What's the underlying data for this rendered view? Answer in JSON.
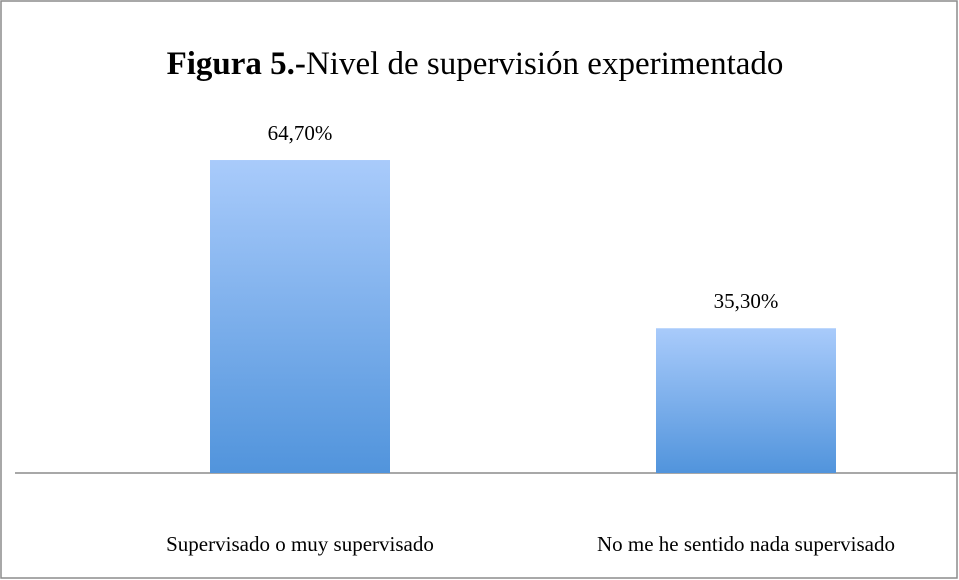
{
  "chart_data": {
    "type": "bar",
    "figure_label": "Figura 5.-",
    "title": "Nivel de supervisión experimentado",
    "categories": [
      "Supervisado o muy supervisado",
      "No me he sentido nada supervisado"
    ],
    "values": [
      64.7,
      35.3
    ],
    "value_labels": [
      "64,70%",
      "35,30%"
    ],
    "color": "#5194dc",
    "ylim": [
      10,
      70
    ]
  }
}
